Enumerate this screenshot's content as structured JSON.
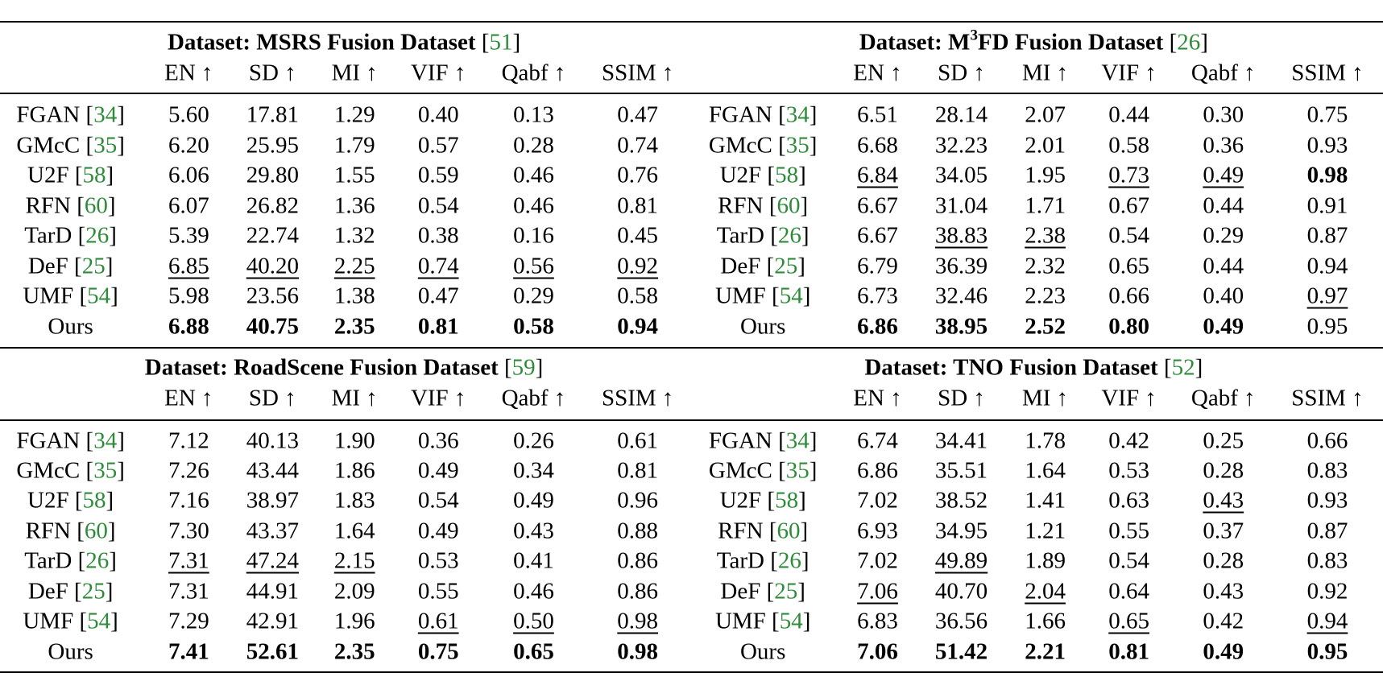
{
  "blocks": [
    {
      "title": [
        {
          "text": "Dataset: MSRS Fusion Dataset"
        }
      ],
      "ref": "51",
      "metrics": [
        "EN ↑",
        "SD ↑",
        "MI ↑",
        "VIF ↑",
        "Qabf ↑",
        "SSIM ↑"
      ],
      "rows": [
        {
          "method": "FGAN",
          "ref": "34",
          "values": [
            "5.60",
            "17.81",
            "1.29",
            "0.40",
            "0.13",
            "0.47"
          ]
        },
        {
          "method": "GMcC",
          "ref": "35",
          "values": [
            "6.20",
            "25.95",
            "1.79",
            "0.57",
            "0.28",
            "0.74"
          ]
        },
        {
          "method": "U2F",
          "ref": "58",
          "values": [
            "6.06",
            "29.80",
            "1.55",
            "0.59",
            "0.46",
            "0.76"
          ]
        },
        {
          "method": "RFN",
          "ref": "60",
          "values": [
            "6.07",
            "26.82",
            "1.36",
            "0.54",
            "0.46",
            "0.81"
          ]
        },
        {
          "method": "TarD",
          "ref": "26",
          "values": [
            "5.39",
            "22.74",
            "1.32",
            "0.38",
            "0.16",
            "0.45"
          ]
        },
        {
          "method": "DeF",
          "ref": "25",
          "values": [
            "6.85",
            "40.20",
            "2.25",
            "0.74",
            "0.56",
            "0.92"
          ]
        },
        {
          "method": "UMF",
          "ref": "54",
          "values": [
            "5.98",
            "23.56",
            "1.38",
            "0.47",
            "0.29",
            "0.58"
          ]
        },
        {
          "method": "Ours",
          "values": [
            "6.88",
            "40.75",
            "2.35",
            "0.81",
            "0.58",
            "0.94"
          ]
        }
      ],
      "bold": [
        [
          7,
          0
        ],
        [
          7,
          1
        ],
        [
          7,
          2
        ],
        [
          7,
          3
        ],
        [
          7,
          4
        ],
        [
          7,
          5
        ]
      ],
      "underline": [
        [
          5,
          0
        ],
        [
          5,
          1
        ],
        [
          5,
          2
        ],
        [
          5,
          3
        ],
        [
          5,
          4
        ],
        [
          5,
          5
        ]
      ]
    },
    {
      "title": [
        {
          "text": "Dataset: M"
        },
        {
          "sup": "3"
        },
        {
          "text": "FD Fusion Dataset"
        }
      ],
      "ref": "26",
      "metrics": [
        "EN ↑",
        "SD ↑",
        "MI ↑",
        "VIF ↑",
        "Qabf ↑",
        "SSIM ↑"
      ],
      "rows": [
        {
          "method": "FGAN",
          "ref": "34",
          "values": [
            "6.51",
            "28.14",
            "2.07",
            "0.44",
            "0.30",
            "0.75"
          ]
        },
        {
          "method": "GMcC",
          "ref": "35",
          "values": [
            "6.68",
            "32.23",
            "2.01",
            "0.58",
            "0.36",
            "0.93"
          ]
        },
        {
          "method": "U2F",
          "ref": "58",
          "values": [
            "6.84",
            "34.05",
            "1.95",
            "0.73",
            "0.49",
            "0.98"
          ]
        },
        {
          "method": "RFN",
          "ref": "60",
          "values": [
            "6.67",
            "31.04",
            "1.71",
            "0.67",
            "0.44",
            "0.91"
          ]
        },
        {
          "method": "TarD",
          "ref": "26",
          "values": [
            "6.67",
            "38.83",
            "2.38",
            "0.54",
            "0.29",
            "0.87"
          ]
        },
        {
          "method": "DeF",
          "ref": "25",
          "values": [
            "6.79",
            "36.39",
            "2.32",
            "0.65",
            "0.44",
            "0.94"
          ]
        },
        {
          "method": "UMF",
          "ref": "54",
          "values": [
            "6.73",
            "32.46",
            "2.23",
            "0.66",
            "0.40",
            "0.97"
          ]
        },
        {
          "method": "Ours",
          "values": [
            "6.86",
            "38.95",
            "2.52",
            "0.80",
            "0.49",
            "0.95"
          ]
        }
      ],
      "bold": [
        [
          2,
          5
        ],
        [
          7,
          0
        ],
        [
          7,
          1
        ],
        [
          7,
          2
        ],
        [
          7,
          3
        ],
        [
          7,
          4
        ]
      ],
      "underline": [
        [
          2,
          0
        ],
        [
          2,
          3
        ],
        [
          2,
          4
        ],
        [
          4,
          1
        ],
        [
          4,
          2
        ],
        [
          6,
          5
        ]
      ]
    },
    {
      "title": [
        {
          "text": "Dataset: RoadScene Fusion Dataset"
        }
      ],
      "ref": "59",
      "metrics": [
        "EN ↑",
        "SD ↑",
        "MI ↑",
        "VIF ↑",
        "Qabf ↑",
        "SSIM ↑"
      ],
      "rows": [
        {
          "method": "FGAN",
          "ref": "34",
          "values": [
            "7.12",
            "40.13",
            "1.90",
            "0.36",
            "0.26",
            "0.61"
          ]
        },
        {
          "method": "GMcC",
          "ref": "35",
          "values": [
            "7.26",
            "43.44",
            "1.86",
            "0.49",
            "0.34",
            "0.81"
          ]
        },
        {
          "method": "U2F",
          "ref": "58",
          "values": [
            "7.16",
            "38.97",
            "1.83",
            "0.54",
            "0.49",
            "0.96"
          ]
        },
        {
          "method": "RFN",
          "ref": "60",
          "values": [
            "7.30",
            "43.37",
            "1.64",
            "0.49",
            "0.43",
            "0.88"
          ]
        },
        {
          "method": "TarD",
          "ref": "26",
          "values": [
            "7.31",
            "47.24",
            "2.15",
            "0.53",
            "0.41",
            "0.86"
          ]
        },
        {
          "method": "DeF",
          "ref": "25",
          "values": [
            "7.31",
            "44.91",
            "2.09",
            "0.55",
            "0.46",
            "0.86"
          ]
        },
        {
          "method": "UMF",
          "ref": "54",
          "values": [
            "7.29",
            "42.91",
            "1.96",
            "0.61",
            "0.50",
            "0.98"
          ]
        },
        {
          "method": "Ours",
          "values": [
            "7.41",
            "52.61",
            "2.35",
            "0.75",
            "0.65",
            "0.98"
          ]
        }
      ],
      "bold": [
        [
          7,
          0
        ],
        [
          7,
          1
        ],
        [
          7,
          2
        ],
        [
          7,
          3
        ],
        [
          7,
          4
        ],
        [
          7,
          5
        ]
      ],
      "underline": [
        [
          4,
          0
        ],
        [
          4,
          1
        ],
        [
          4,
          2
        ],
        [
          6,
          3
        ],
        [
          6,
          4
        ],
        [
          6,
          5
        ]
      ]
    },
    {
      "title": [
        {
          "text": "Dataset: TNO Fusion Dataset"
        }
      ],
      "ref": "52",
      "metrics": [
        "EN ↑",
        "SD ↑",
        "MI ↑",
        "VIF ↑",
        "Qabf ↑",
        "SSIM ↑"
      ],
      "rows": [
        {
          "method": "FGAN",
          "ref": "34",
          "values": [
            "6.74",
            "34.41",
            "1.78",
            "0.42",
            "0.25",
            "0.66"
          ]
        },
        {
          "method": "GMcC",
          "ref": "35",
          "values": [
            "6.86",
            "35.51",
            "1.64",
            "0.53",
            "0.28",
            "0.83"
          ]
        },
        {
          "method": "U2F",
          "ref": "58",
          "values": [
            "7.02",
            "38.52",
            "1.41",
            "0.63",
            "0.43",
            "0.93"
          ]
        },
        {
          "method": "RFN",
          "ref": "60",
          "values": [
            "6.93",
            "34.95",
            "1.21",
            "0.55",
            "0.37",
            "0.87"
          ]
        },
        {
          "method": "TarD",
          "ref": "26",
          "values": [
            "7.02",
            "49.89",
            "1.89",
            "0.54",
            "0.28",
            "0.83"
          ]
        },
        {
          "method": "DeF",
          "ref": "25",
          "values": [
            "7.06",
            "40.70",
            "2.04",
            "0.64",
            "0.43",
            "0.92"
          ]
        },
        {
          "method": "UMF",
          "ref": "54",
          "values": [
            "6.83",
            "36.56",
            "1.66",
            "0.65",
            "0.42",
            "0.94"
          ]
        },
        {
          "method": "Ours",
          "values": [
            "7.06",
            "51.42",
            "2.21",
            "0.81",
            "0.49",
            "0.95"
          ]
        }
      ],
      "bold": [
        [
          7,
          0
        ],
        [
          7,
          1
        ],
        [
          7,
          2
        ],
        [
          7,
          3
        ],
        [
          7,
          4
        ],
        [
          7,
          5
        ]
      ],
      "underline": [
        [
          2,
          4
        ],
        [
          4,
          1
        ],
        [
          5,
          0
        ],
        [
          5,
          2
        ],
        [
          6,
          3
        ],
        [
          6,
          5
        ]
      ]
    }
  ]
}
